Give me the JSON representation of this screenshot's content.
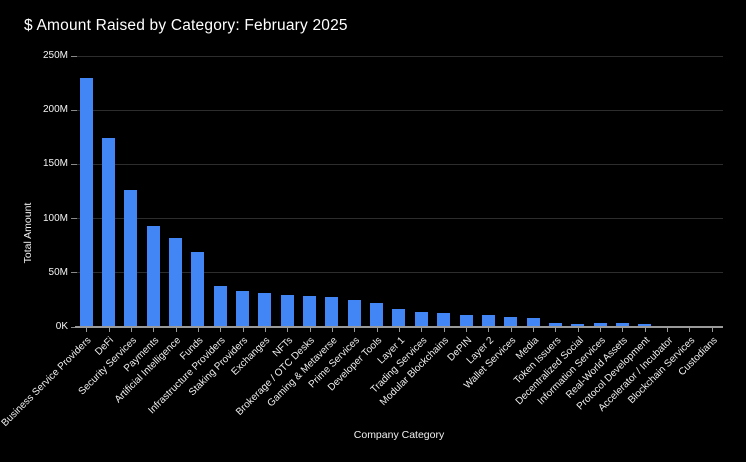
{
  "colors": {
    "background": "#000000",
    "bar": "#4285f4",
    "gridline": "#2d2d2d",
    "axis_line": "#9a9a9a",
    "text": "#ffffff",
    "tick_text": "#f0f0f0"
  },
  "chart_data": {
    "type": "bar",
    "title": "$ Amount Raised by Category: February 2025",
    "xlabel": "Company Category",
    "ylabel": "Total Amount",
    "ylim": [
      0,
      250
    ],
    "grid": true,
    "legend": false,
    "yticks": [
      {
        "value": 0,
        "label": "0K"
      },
      {
        "value": 50,
        "label": "50M"
      },
      {
        "value": 100,
        "label": "100M"
      },
      {
        "value": 150,
        "label": "150M"
      },
      {
        "value": 200,
        "label": "200M"
      },
      {
        "value": 250,
        "label": "250M"
      }
    ],
    "categories": [
      "Business Service Providers",
      "DeFi",
      "Security Services",
      "Payments",
      "Artificial Intelligence",
      "Funds",
      "Infrastructure Providers",
      "Staking Providers",
      "Exchanges",
      "NFTs",
      "Brokerage / OTC Desks",
      "Gaming & Metaverse",
      "Prime Services",
      "Developer Tools",
      "Layer 1",
      "Trading Services",
      "Modular Blockchains",
      "DePIN",
      "Layer 2",
      "Wallet Services",
      "Media",
      "Token Issuers",
      "Decentralized Social",
      "Information Services",
      "Real-World Assets",
      "Protocol Development",
      "Accelerator / Incubator",
      "Blockchain Services",
      "Custodians"
    ],
    "values": [
      230,
      174,
      126,
      93,
      82,
      69,
      37.5,
      33.5,
      31,
      29.5,
      28.5,
      28,
      24.5,
      22,
      17,
      13.5,
      12.5,
      11.5,
      11,
      9,
      8,
      4,
      3,
      3.3,
      3.7,
      2.5,
      0.3,
      0.2,
      0.1
    ],
    "values_unit": "M"
  }
}
